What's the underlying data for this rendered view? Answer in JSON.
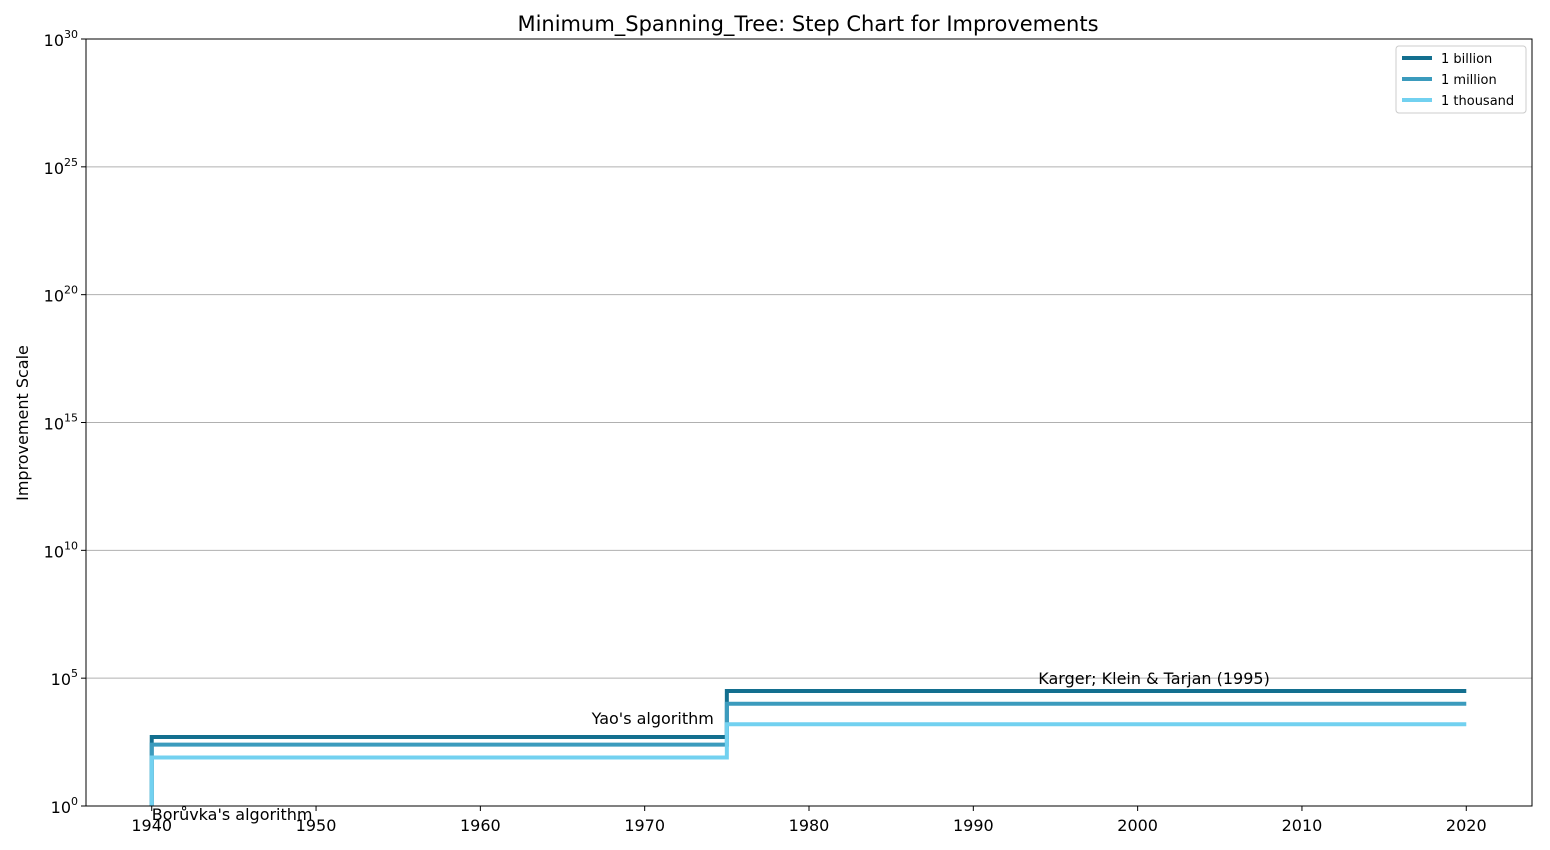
{
  "chart_data": {
    "type": "line",
    "step": true,
    "title": "Minimum_Spanning_Tree: Step Chart for Improvements",
    "xlabel": "",
    "ylabel": "Improvement Scale",
    "xlim": [
      1936,
      2024
    ],
    "ylim_exponent": [
      0,
      30
    ],
    "yscale": "log",
    "x_ticks": [
      1940,
      1950,
      1960,
      1970,
      1980,
      1990,
      2000,
      2010,
      2020
    ],
    "y_ticks": [
      {
        "base": "10",
        "exp": "0",
        "value_exp": 0
      },
      {
        "base": "10",
        "exp": "5",
        "value_exp": 5
      },
      {
        "base": "10",
        "exp": "10",
        "value_exp": 10
      },
      {
        "base": "10",
        "exp": "15",
        "value_exp": 15
      },
      {
        "base": "10",
        "exp": "20",
        "value_exp": 20
      },
      {
        "base": "10",
        "exp": "25",
        "value_exp": 25
      },
      {
        "base": "10",
        "exp": "30",
        "value_exp": 30
      }
    ],
    "grid": "horizontal",
    "legend_position": "top-right",
    "series": [
      {
        "name": "1 billion",
        "color": "#136f8f",
        "x": [
          1940,
          1975,
          2020
        ],
        "y": [
          501,
          31600,
          31600
        ]
      },
      {
        "name": "1 million",
        "color": "#3b9bbd",
        "x": [
          1940,
          1975,
          2020
        ],
        "y": [
          251,
          10000,
          10000
        ]
      },
      {
        "name": "1 thousand",
        "color": "#72d1f0",
        "x": [
          1940,
          1975,
          2020
        ],
        "y": [
          79,
          1580,
          1580
        ]
      }
    ],
    "annotations": [
      {
        "text": "Borůvka's algorithm",
        "x": 1940,
        "y": 1
      },
      {
        "text": "Yao's algorithm",
        "x": 1975,
        "y": 501
      },
      {
        "text": "Karger; Klein & Tarjan (1995)",
        "x": 2001,
        "y": 31600
      }
    ]
  }
}
